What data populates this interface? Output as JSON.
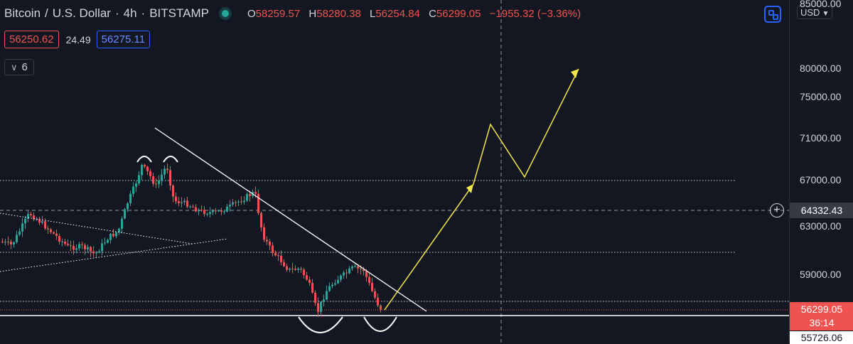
{
  "header": {
    "symbol": "Bitcoin",
    "sep1": "/",
    "quote": "U.S. Dollar",
    "sep2": "·",
    "interval": "4h",
    "sep3": "·",
    "exchange": "BITSTAMP",
    "open_key": "O",
    "open": "58259.57",
    "high_key": "H",
    "high": "58280.38",
    "low_key": "L",
    "low": "56254.84",
    "close_key": "C",
    "close": "56299.05",
    "change": "−1955.32 (−3.36%)"
  },
  "quote_boxes": {
    "sell": "56250.62",
    "spread": "24.49",
    "buy": "56275.11"
  },
  "indicators": {
    "count": "6"
  },
  "currency": "USD",
  "colors": {
    "up": "#26a69a",
    "down": "#ef5350",
    "arrow": "#f5e84b",
    "line": "#ffffff"
  },
  "chart_data": {
    "type": "candlestick",
    "symbol": "BTC/USD",
    "interval": "4h",
    "ylim": [
      55726.06,
      85000
    ],
    "y_ticks": [
      59000,
      63000,
      67000,
      71000,
      75000,
      80000,
      85000
    ],
    "y_tick_labels": [
      "59000.00",
      "63000.00",
      "67000.00",
      "71000.00",
      "75000.00",
      "80000.00",
      "85000.00"
    ],
    "price_labels": {
      "current": "56299.05",
      "countdown": "36:14",
      "crosshair": "64332.43",
      "low": "55726.06"
    },
    "horizontal_levels": [
      67000,
      64332.43,
      60600,
      57550,
      56800,
      56300
    ],
    "key_prices": {
      "double_top": 68400,
      "double_bottom": 56200
    },
    "projection_path": [
      56300,
      67000,
      71700,
      67300,
      79100
    ]
  }
}
